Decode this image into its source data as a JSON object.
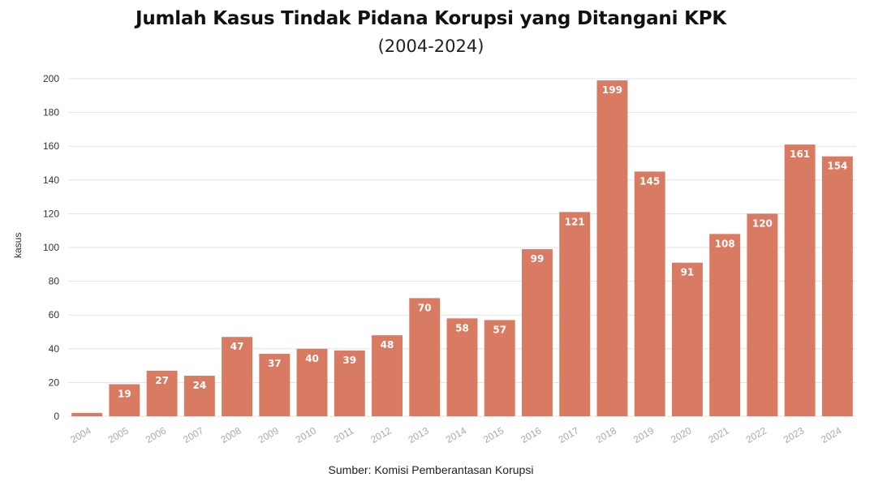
{
  "title": "Jumlah Kasus Tindak Pidana Korupsi yang Ditangani KPK",
  "subtitle": "(2004-2024)",
  "source": "Sumber: Komisi Pemberantasan Korupsi",
  "colors": {
    "bar": "#D97B62",
    "grid": "#E3E3E3",
    "axis_text": "#333333",
    "x_tick_text": "#AAAAAA",
    "bar_label": "#FFFFFF"
  },
  "chart_data": {
    "type": "bar",
    "title": "Jumlah Kasus Tindak Pidana Korupsi yang Ditangani KPK",
    "subtitle": "(2004-2024)",
    "xlabel": "",
    "ylabel": "kasus",
    "ylim": [
      0,
      200
    ],
    "yticks": [
      0,
      20,
      40,
      60,
      80,
      100,
      120,
      140,
      160,
      180,
      200
    ],
    "grid": true,
    "categories": [
      "2004",
      "2005",
      "2006",
      "2007",
      "2008",
      "2009",
      "2010",
      "2011",
      "2012",
      "2013",
      "2014",
      "2015",
      "2016",
      "2017",
      "2018",
      "2019",
      "2020",
      "2021",
      "2022",
      "2023",
      "2024"
    ],
    "values": [
      2,
      19,
      27,
      24,
      47,
      37,
      40,
      39,
      48,
      70,
      58,
      57,
      99,
      121,
      199,
      145,
      91,
      108,
      120,
      161,
      154
    ],
    "data_labels": [
      "",
      "19",
      "27",
      "24",
      "47",
      "37",
      "40",
      "39",
      "48",
      "70",
      "58",
      "57",
      "99",
      "121",
      "199",
      "145",
      "91",
      "108",
      "120",
      "161",
      "154"
    ]
  }
}
